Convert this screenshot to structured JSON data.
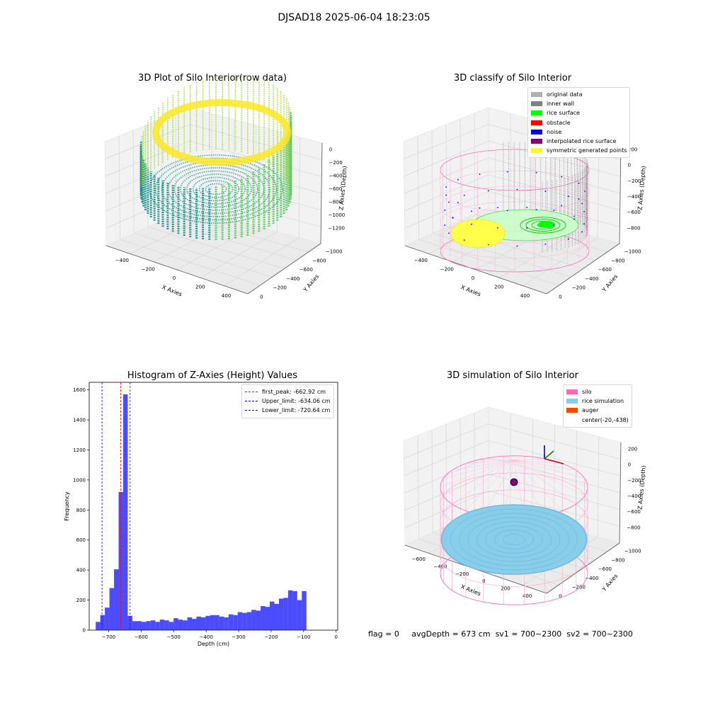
{
  "figure": {
    "suptitle": "DJSAD18 2025-06-04 18:23:05",
    "status": {
      "flag": "flag = 0",
      "avg": "avgDepth = 673 cm",
      "sv1": "sv1 = 700~2300",
      "sv2": "sv2 = 700~2300"
    }
  },
  "panels": {
    "raw": {
      "title": "3D Plot of Silo Interior(row data)",
      "xlabel": "X Axies",
      "ylabel": "Y Axies",
      "zlabel": "Z Axies (Depth)",
      "xticks": [
        "−400",
        "−200",
        "0",
        "200",
        "400"
      ],
      "yticks": [
        "0",
        "−200",
        "−400",
        "−600",
        "−800",
        "−1000"
      ],
      "zticks": [
        "0",
        "−200",
        "−400",
        "−600",
        "−800",
        "−1000",
        "−1200"
      ]
    },
    "classify": {
      "title": "3D classify of Silo Interior",
      "xlabel": "X Axies",
      "ylabel": "Y Axies",
      "zlabel": "Z Axies (Depth)",
      "xticks": [
        "−400",
        "−200",
        "0",
        "200",
        "400"
      ],
      "yticks": [
        "0",
        "−200",
        "−400",
        "−600",
        "−800",
        "−1000"
      ],
      "zticks": [
        "200",
        "0",
        "−200",
        "−400",
        "−600",
        "−800"
      ],
      "legend": [
        {
          "label": "original data",
          "color": "#b0b0b0"
        },
        {
          "label": "inner wall",
          "color": "#808080"
        },
        {
          "label": "rice surface",
          "color": "#00ff00"
        },
        {
          "label": "obstacle",
          "color": "#ff0000"
        },
        {
          "label": "noise",
          "color": "#0000ff"
        },
        {
          "label": "interpolated rice surface",
          "color": "#800080"
        },
        {
          "label": "symmetric generated points",
          "color": "#ffff00"
        }
      ]
    },
    "simulation": {
      "title": "3D simulation of Silo Interior",
      "xlabel": "X Axies",
      "ylabel": "Y Axies",
      "zlabel": "Z Axies (Depth)",
      "xticks": [
        "−600",
        "−400",
        "−200",
        "0",
        "200",
        "400"
      ],
      "yticks": [
        "0",
        "−200",
        "−400",
        "−600",
        "−800",
        "−1000"
      ],
      "zticks": [
        "200",
        "0",
        "−200",
        "−400",
        "−600",
        "−800"
      ],
      "legend": [
        {
          "label": "silo",
          "color": "#ff69b4"
        },
        {
          "label": "rice simulation",
          "color": "#87ceeb"
        },
        {
          "label": "auger",
          "color": "#ff4500"
        },
        {
          "label": "center(-20,-438)",
          "color": "none"
        }
      ]
    }
  },
  "chart_data": [
    {
      "type": "histogram",
      "title": "Histogram of Z-Axies (Height) Values",
      "xlabel": "Depth (cm)",
      "ylabel": "Frequency",
      "xlim": [
        -760,
        5
      ],
      "ylim": [
        0,
        1650
      ],
      "xticks": [
        -700,
        -600,
        -500,
        -400,
        -300,
        -200,
        -100,
        0
      ],
      "xtick_labels": [
        "−700",
        "−600",
        "−500",
        "−400",
        "−300",
        "−200",
        "−100",
        "0"
      ],
      "yticks": [
        0,
        200,
        400,
        600,
        800,
        1000,
        1200,
        1400,
        1600
      ],
      "bar_color": "#0000ff",
      "bin_start": -740,
      "bin_width": 14.1,
      "values": [
        55,
        100,
        150,
        280,
        405,
        920,
        1570,
        95,
        60,
        60,
        55,
        60,
        65,
        55,
        70,
        65,
        55,
        80,
        70,
        65,
        85,
        75,
        90,
        85,
        95,
        100,
        100,
        90,
        85,
        105,
        100,
        120,
        115,
        120,
        135,
        130,
        160,
        155,
        190,
        175,
        210,
        215,
        265,
        260,
        200,
        260
      ],
      "lines": [
        {
          "label": "first_peak: -662.92 cm",
          "x": -662.92,
          "color": "#ff0000"
        },
        {
          "label": "Upper_limit: -634.06 cm",
          "x": -634.06,
          "color": "#0000ff"
        },
        {
          "label": "Lower_limit: -720.64 cm",
          "x": -720.64,
          "color": "#0000ff"
        }
      ],
      "legend_position": "top-right"
    }
  ]
}
